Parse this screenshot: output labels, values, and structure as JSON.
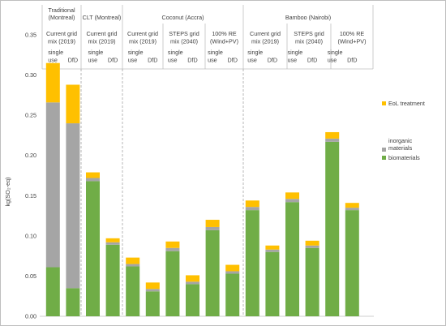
{
  "chart_data": {
    "type": "bar",
    "stacked": true,
    "ylabel": "kg(SO₂-eq)",
    "ylim": [
      0,
      0.35
    ],
    "yticks": [
      "0.00",
      "0.05",
      "0.10",
      "0.15",
      "0.20",
      "0.25",
      "0.30",
      "0.35"
    ],
    "grid": false,
    "legend_position": "right",
    "groups": [
      {
        "label": "Traditional (Montreal)",
        "scenarios": [
          {
            "label": "Current grid mix (2019)",
            "cases": [
              "single use",
              "DfD"
            ]
          }
        ]
      },
      {
        "label": "CLT (Montreal)",
        "scenarios": [
          {
            "label": "Current grid mix (2019)",
            "cases": [
              "single use",
              "DfD"
            ]
          }
        ]
      },
      {
        "label": "Coconut (Accra)",
        "scenarios": [
          {
            "label": "Current grid mix (2019)",
            "cases": [
              "single use",
              "DfD"
            ]
          },
          {
            "label": "STEPS grid mix (2040)",
            "cases": [
              "single use",
              "DfD"
            ]
          },
          {
            "label": "100% RE (Wind+PV)",
            "cases": [
              "single use",
              "DfD"
            ]
          }
        ]
      },
      {
        "label": "Bamboo (Nairobi)",
        "scenarios": [
          {
            "label": "Current grid mix (2019)",
            "cases": [
              "single use",
              "DfD"
            ]
          },
          {
            "label": "STEPS grid mix (2040)",
            "cases": [
              "single use",
              "DfD"
            ]
          },
          {
            "label": "100% RE (Wind+PV)",
            "cases": [
              "single use",
              "DfD"
            ]
          }
        ]
      }
    ],
    "series": [
      {
        "name": "biomaterials",
        "color": "#70AD47",
        "values": [
          0.061,
          0.035,
          0.168,
          0.089,
          0.062,
          0.031,
          0.081,
          0.04,
          0.107,
          0.053,
          0.132,
          0.08,
          0.142,
          0.085,
          0.217,
          0.132
        ]
      },
      {
        "name": "inorganic materials",
        "color": "#A5A5A5",
        "values": [
          0.205,
          0.205,
          0.004,
          0.003,
          0.003,
          0.003,
          0.004,
          0.003,
          0.004,
          0.003,
          0.004,
          0.003,
          0.004,
          0.003,
          0.004,
          0.003
        ]
      },
      {
        "name": "EoL treatment",
        "color": "#FFC000",
        "values": [
          0.049,
          0.048,
          0.007,
          0.005,
          0.008,
          0.008,
          0.008,
          0.008,
          0.009,
          0.008,
          0.008,
          0.005,
          0.008,
          0.006,
          0.008,
          0.006
        ]
      }
    ],
    "legend": [
      {
        "label": "EoL treatment",
        "color": "#FFC000"
      },
      {
        "label": "inorganic materials",
        "color": "#A5A5A5"
      },
      {
        "label": "biomaterials",
        "color": "#70AD47"
      }
    ]
  }
}
